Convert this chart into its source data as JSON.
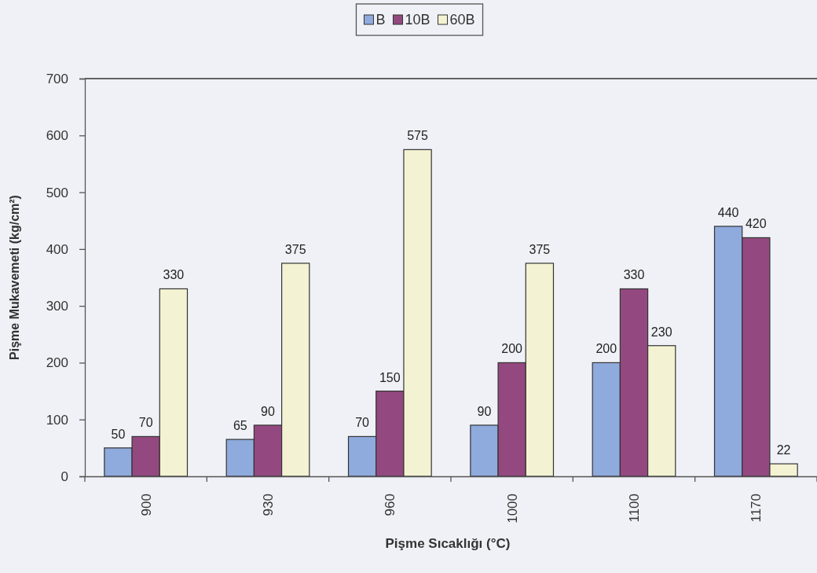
{
  "chart_data": {
    "type": "bar",
    "xlabel": "Pişme Sıcaklığı (°C)",
    "ylabel": "Pişme Mukavemeti (kg/cm²)",
    "categories": [
      "900",
      "930",
      "960",
      "1000",
      "1100",
      "1170"
    ],
    "series": [
      {
        "name": "B",
        "color": "#8faadc",
        "values": [
          50,
          65,
          70,
          90,
          200,
          440
        ]
      },
      {
        "name": "10B",
        "color": "#93497f",
        "values": [
          70,
          90,
          150,
          200,
          330,
          420
        ]
      },
      {
        "name": "60B",
        "color": "#f3f3d3",
        "values": [
          330,
          375,
          575,
          375,
          230,
          22
        ]
      }
    ],
    "ylim": [
      0,
      700
    ],
    "yticks": [
      0,
      100,
      200,
      300,
      400,
      500,
      600,
      700
    ],
    "data_labels": true,
    "legend": "top"
  }
}
